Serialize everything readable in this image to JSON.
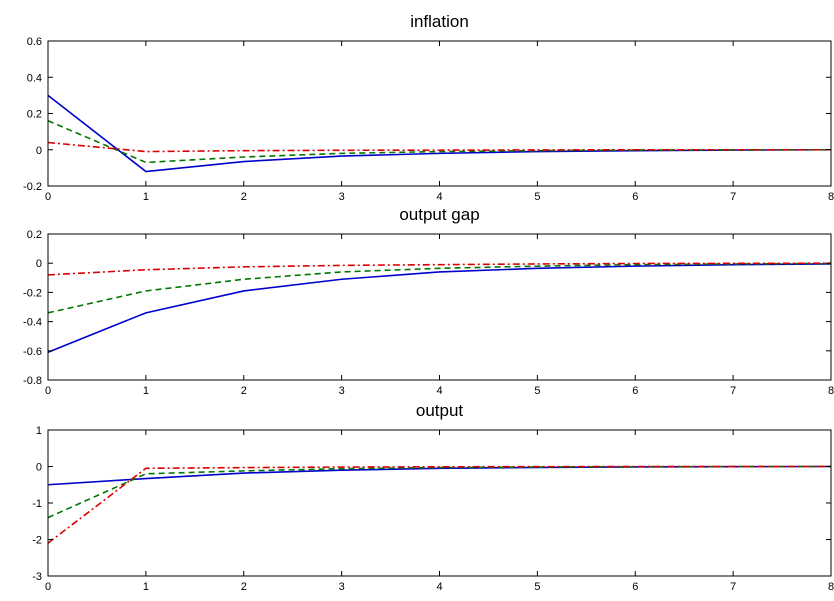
{
  "chart_data": [
    {
      "type": "line",
      "title": "inflation",
      "xlabel": "",
      "ylabel": "",
      "xlim": [
        0,
        8
      ],
      "ylim": [
        -0.2,
        0.6
      ],
      "xticks": [
        "0",
        "1",
        "2",
        "3",
        "4",
        "5",
        "6",
        "7",
        "8"
      ],
      "yticks": [
        "-0.2",
        "0",
        "0.2",
        "0.4",
        "0.6"
      ],
      "x": [
        0,
        1,
        2,
        3,
        4,
        5,
        6,
        7,
        8
      ],
      "grid": false,
      "series": [
        {
          "color": "#0000cc",
          "style": "solid",
          "values": [
            0.3,
            -0.12,
            -0.065,
            -0.035,
            -0.02,
            -0.01,
            -0.005,
            -0.002,
            0.0
          ]
        },
        {
          "color": "#007700",
          "style": "dashed",
          "values": [
            0.16,
            -0.07,
            -0.04,
            -0.02,
            -0.01,
            -0.005,
            -0.002,
            -0.001,
            0.0
          ]
        },
        {
          "color": "#dd0000",
          "style": "dashdot",
          "values": [
            0.04,
            -0.01,
            -0.005,
            -0.003,
            -0.002,
            -0.001,
            0.0,
            0.0,
            0.0
          ]
        }
      ]
    },
    {
      "type": "line",
      "title": "output gap",
      "xlabel": "",
      "ylabel": "",
      "xlim": [
        0,
        8
      ],
      "ylim": [
        -0.8,
        0.2
      ],
      "xticks": [
        "0",
        "1",
        "2",
        "3",
        "4",
        "5",
        "6",
        "7",
        "8"
      ],
      "yticks": [
        "-0.8",
        "-0.6",
        "-0.4",
        "-0.2",
        "0",
        "0.2"
      ],
      "x": [
        0,
        1,
        2,
        3,
        4,
        5,
        6,
        7,
        8
      ],
      "grid": false,
      "series": [
        {
          "color": "#0000cc",
          "style": "solid",
          "values": [
            -0.61,
            -0.34,
            -0.19,
            -0.11,
            -0.06,
            -0.035,
            -0.02,
            -0.01,
            -0.005
          ]
        },
        {
          "color": "#007700",
          "style": "dashed",
          "values": [
            -0.34,
            -0.19,
            -0.11,
            -0.06,
            -0.035,
            -0.02,
            -0.01,
            -0.005,
            -0.002
          ]
        },
        {
          "color": "#dd0000",
          "style": "dashdot",
          "values": [
            -0.08,
            -0.045,
            -0.025,
            -0.015,
            -0.01,
            -0.005,
            -0.002,
            -0.001,
            0.0
          ]
        }
      ]
    },
    {
      "type": "line",
      "title": "output",
      "xlabel": "",
      "ylabel": "",
      "xlim": [
        0,
        8
      ],
      "ylim": [
        -3,
        1
      ],
      "xticks": [
        "0",
        "1",
        "2",
        "3",
        "4",
        "5",
        "6",
        "7",
        "8"
      ],
      "yticks": [
        "-3",
        "-2",
        "-1",
        "0",
        "1"
      ],
      "x": [
        0,
        1,
        2,
        3,
        4,
        5,
        6,
        7,
        8
      ],
      "grid": false,
      "series": [
        {
          "color": "#0000cc",
          "style": "solid",
          "values": [
            -0.5,
            -0.33,
            -0.18,
            -0.1,
            -0.05,
            -0.025,
            -0.012,
            -0.005,
            0.0
          ]
        },
        {
          "color": "#007700",
          "style": "dashed",
          "values": [
            -1.4,
            -0.2,
            -0.12,
            -0.06,
            -0.03,
            -0.015,
            -0.007,
            -0.003,
            0.0
          ]
        },
        {
          "color": "#dd0000",
          "style": "dashdot",
          "values": [
            -2.1,
            -0.05,
            -0.03,
            -0.015,
            -0.008,
            -0.004,
            -0.002,
            -0.001,
            0.0
          ]
        }
      ]
    }
  ]
}
